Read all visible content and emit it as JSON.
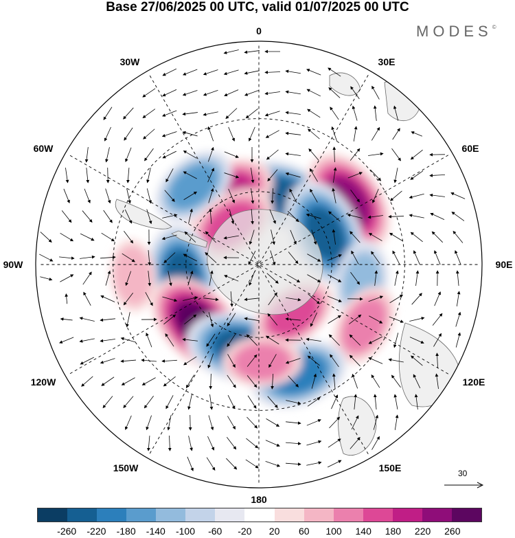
{
  "title": "Base 27/06/2025 00 UTC, valid 01/07/2025 00 UTC",
  "brand": "MODES",
  "brand_mark": "©",
  "longitude_labels": {
    "lon_0": "0",
    "lon_30e": "30E",
    "lon_60e": "60E",
    "lon_90e": "90E",
    "lon_120e": "120E",
    "lon_150e": "150E",
    "lon_180": "180",
    "lon_150w": "150W",
    "lon_120w": "120W",
    "lon_90w": "90W",
    "lon_60w": "60W",
    "lon_30w": "30W"
  },
  "reference_vector": {
    "value": "30"
  },
  "colorbar": {
    "colors": [
      "#0b3d63",
      "#155f92",
      "#2c7fbb",
      "#5a9ccd",
      "#93bbdd",
      "#c3d3e9",
      "#e7e8f1",
      "#ffffff",
      "#f9dede",
      "#f4b6c5",
      "#eb80ad",
      "#dd4896",
      "#c01e86",
      "#8f0d79",
      "#5c0660"
    ],
    "ticks": [
      "-260",
      "-220",
      "-180",
      "-140",
      "-100",
      "-60",
      "-20",
      "20",
      "60",
      "100",
      "140",
      "180",
      "220",
      "260"
    ]
  },
  "anomaly_centers": [
    {
      "lat_lon": [
        -60,
        20
      ],
      "value": -220
    },
    {
      "lat_lon": [
        -58,
        -25
      ],
      "value": 200
    },
    {
      "lat_lon": [
        -48,
        -40
      ],
      "value": -150
    },
    {
      "lat_lon": [
        -70,
        -35
      ],
      "value": 170
    },
    {
      "lat_lon": [
        -45,
        55
      ],
      "value": 240
    },
    {
      "lat_lon": [
        -60,
        65
      ],
      "value": -250
    },
    {
      "lat_lon": [
        -47,
        100
      ],
      "value": -130
    },
    {
      "lat_lon": [
        -58,
        -100
      ],
      "value": -240
    },
    {
      "lat_lon": [
        -55,
        -135
      ],
      "value": 260
    },
    {
      "lat_lon": [
        -55,
        -168
      ],
      "value": -250
    },
    {
      "lat_lon": [
        -65,
        145
      ],
      "value": 150
    },
    {
      "lat_lon": [
        -40,
        120
      ],
      "value": 130
    },
    {
      "lat_lon": [
        -42,
        160
      ],
      "value": -200
    },
    {
      "lat_lon": [
        -50,
        178
      ],
      "value": 110
    },
    {
      "lat_lon": [
        -38,
        -95
      ],
      "value": 80
    }
  ]
}
